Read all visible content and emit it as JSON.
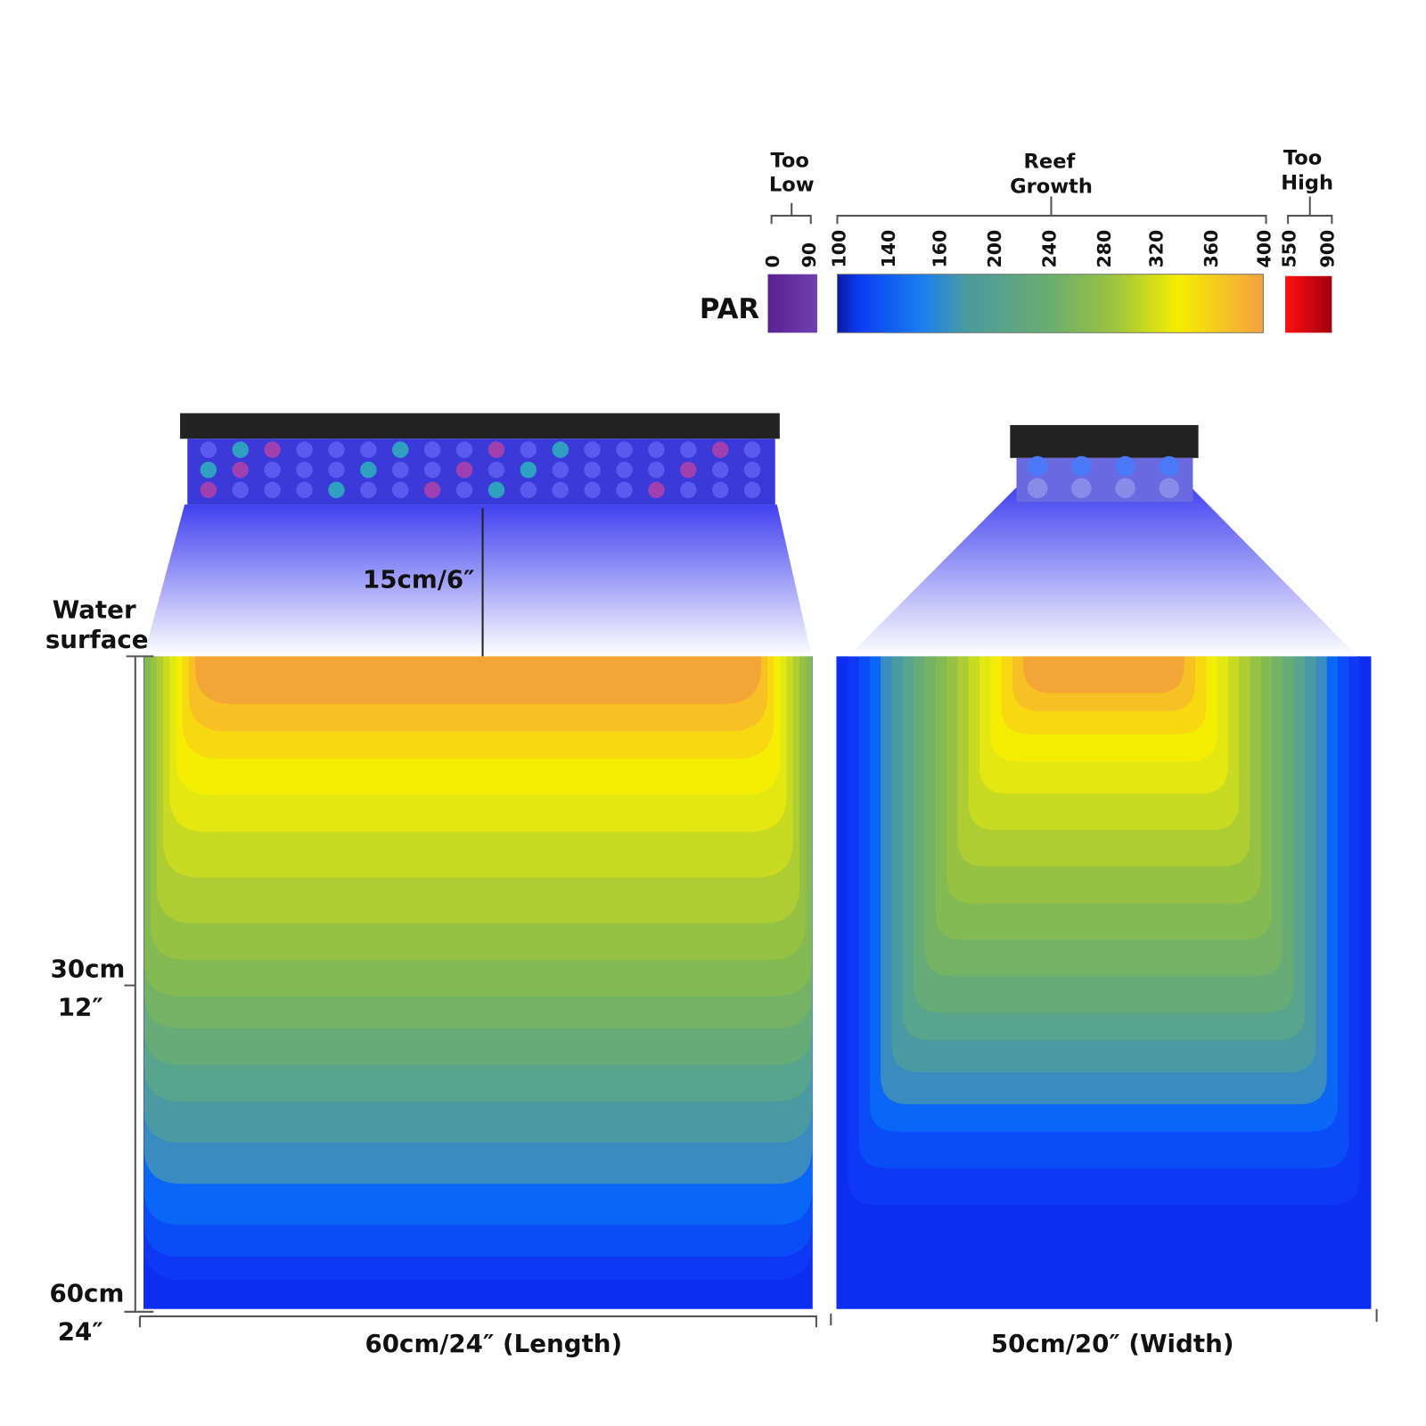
{
  "legend": {
    "label": "PAR",
    "groups": [
      {
        "title": [
          "Too",
          "Low"
        ],
        "ticks": [
          "0",
          "90"
        ]
      },
      {
        "title": [
          "Reef",
          "Growth"
        ],
        "ticks": [
          "100",
          "140",
          "160",
          "200",
          "240",
          "280",
          "320",
          "360",
          "400"
        ]
      },
      {
        "title": [
          "Too",
          "High"
        ],
        "ticks": [
          "550",
          "900"
        ]
      }
    ]
  },
  "length_view": {
    "height_label": "15cm/6″",
    "surface_label": [
      "Water",
      "surface"
    ],
    "depth_marks": [
      {
        "cm": "30cm",
        "in": "12″"
      },
      {
        "cm": "60cm",
        "in": "24″"
      }
    ],
    "caption": "60cm/24″  (Length)"
  },
  "width_view": {
    "caption": "50cm/20″  (Width)"
  }
}
